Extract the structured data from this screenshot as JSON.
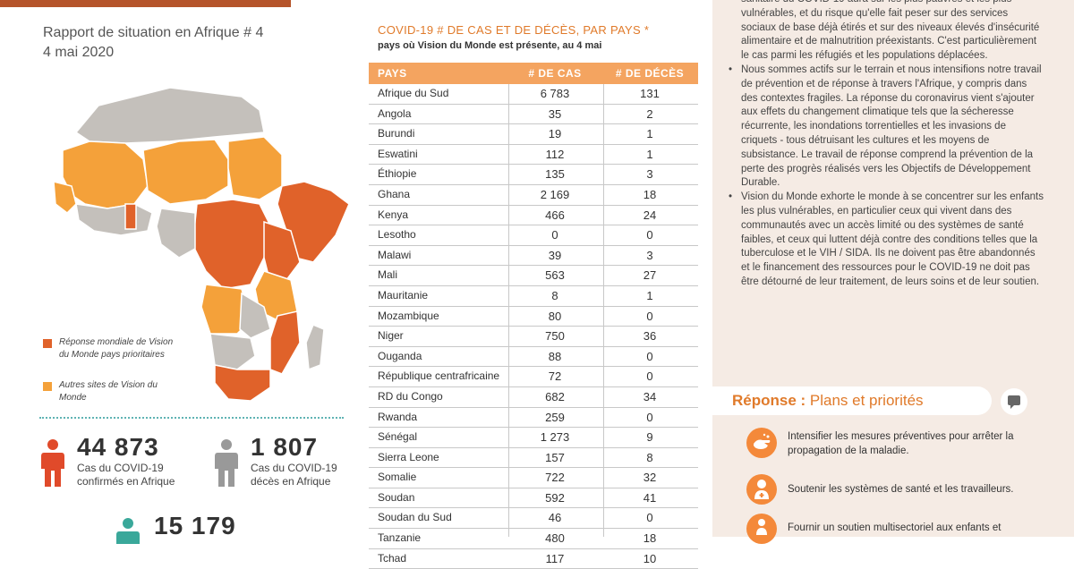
{
  "report": {
    "title": "Rapport de situation en Afrique # 4",
    "date": "4 mai 2020"
  },
  "legend": {
    "priority": "Réponse mondiale de Vision du Monde pays prioritaires",
    "other": "Autres sites de Vision du Monde"
  },
  "colors": {
    "priority": "#e0622a",
    "other": "#f4a13a",
    "grey": "#c4c0bb",
    "accent": "#e07a2a"
  },
  "stats": [
    {
      "value": "44 873",
      "label_line1": "Cas du COVID-19",
      "label_line2": "confirmés en Afrique"
    },
    {
      "value": "1 807",
      "label_line1": "Cas du COVID-19",
      "label_line2": "décès en Afrique"
    },
    {
      "value": "15 179"
    }
  ],
  "table": {
    "title": "COVID-19 # DE CAS ET DE DÉCÈS, PAR PAYS *",
    "subtitle": "pays où Vision du Monde est présente, au 4 mai",
    "headers": {
      "country": "PAYS",
      "cases": "# DE CAS",
      "deaths": "# DE DÉCÈS"
    },
    "rows": [
      {
        "country": "Afrique du Sud",
        "cases": "6 783",
        "deaths": "131"
      },
      {
        "country": "Angola",
        "cases": "35",
        "deaths": "2"
      },
      {
        "country": "Burundi",
        "cases": "19",
        "deaths": "1"
      },
      {
        "country": "Eswatini",
        "cases": "112",
        "deaths": "1"
      },
      {
        "country": "Éthiopie",
        "cases": "135",
        "deaths": "3"
      },
      {
        "country": "Ghana",
        "cases": "2 169",
        "deaths": "18"
      },
      {
        "country": "Kenya",
        "cases": "466",
        "deaths": "24"
      },
      {
        "country": "Lesotho",
        "cases": "0",
        "deaths": "0"
      },
      {
        "country": "Malawi",
        "cases": "39",
        "deaths": "3"
      },
      {
        "country": "Mali",
        "cases": "563",
        "deaths": "27"
      },
      {
        "country": "Mauritanie",
        "cases": "8",
        "deaths": "1"
      },
      {
        "country": "Mozambique",
        "cases": "80",
        "deaths": "0"
      },
      {
        "country": "Niger",
        "cases": "750",
        "deaths": "36"
      },
      {
        "country": "Ouganda",
        "cases": "88",
        "deaths": "0"
      },
      {
        "country": "République centrafricaine",
        "cases": "72",
        "deaths": "0"
      },
      {
        "country": "RD du Congo",
        "cases": "682",
        "deaths": "34"
      },
      {
        "country": "Rwanda",
        "cases": "259",
        "deaths": "0"
      },
      {
        "country": "Sénégal",
        "cases": "1 273",
        "deaths": "9"
      },
      {
        "country": "Sierra Leone",
        "cases": "157",
        "deaths": "8"
      },
      {
        "country": "Somalie",
        "cases": "722",
        "deaths": "32"
      },
      {
        "country": "Soudan",
        "cases": "592",
        "deaths": "41"
      },
      {
        "country": "Soudan du Sud",
        "cases": "46",
        "deaths": "0"
      },
      {
        "country": "Tanzanie",
        "cases": "480",
        "deaths": "18"
      },
      {
        "country": "Tchad",
        "cases": "117",
        "deaths": "10"
      }
    ]
  },
  "bullets": [
    "sanitaire du COVID-19 aura sur les plus pauvres et les plus vulnérables, et du risque qu'elle fait peser sur des services sociaux de base déjà étirés et sur des niveaux élevés d'insécurité alimentaire et de malnutrition préexistants. C'est particulièrement le cas parmi les réfugiés et les populations déplacées.",
    "Nous sommes actifs sur le terrain et nous intensifions notre travail de prévention et de réponse à travers l'Afrique, y compris dans des contextes fragiles. La réponse du coronavirus vient s'ajouter aux effets du changement climatique tels que la sécheresse récurrente, les inondations torrentielles et les invasions de criquets - tous détruisant les cultures et les moyens de subsistance. Le travail de réponse comprend la prévention de la perte des progrès réalisés vers les Objectifs de Développement Durable.",
    "Vision du Monde exhorte le monde à se concentrer sur les enfants les plus vulnérables, en particulier ceux qui vivent dans des communautés avec un accès limité ou des systèmes de santé faibles, et ceux qui luttent déjà contre des conditions telles que la tuberculose et le VIH / SIDA. Ils ne doivent pas être abandonnés et le financement des ressources pour le COVID-19 ne doit pas être détourné de leur traitement, de leurs soins et de leur soutien."
  ],
  "response": {
    "title_bold": "Réponse :",
    "title_rest": " Plans et priorités",
    "priorities": [
      {
        "text": "Intensifier les mesures préventives pour arrêter la propagation de la maladie.",
        "icon": "handwash-icon"
      },
      {
        "text": "Soutenir les systèmes de santé et les travailleurs.",
        "icon": "health-worker-icon"
      },
      {
        "text": "Fournir un soutien multisectoriel aux enfants et",
        "icon": "child-support-icon"
      }
    ]
  }
}
